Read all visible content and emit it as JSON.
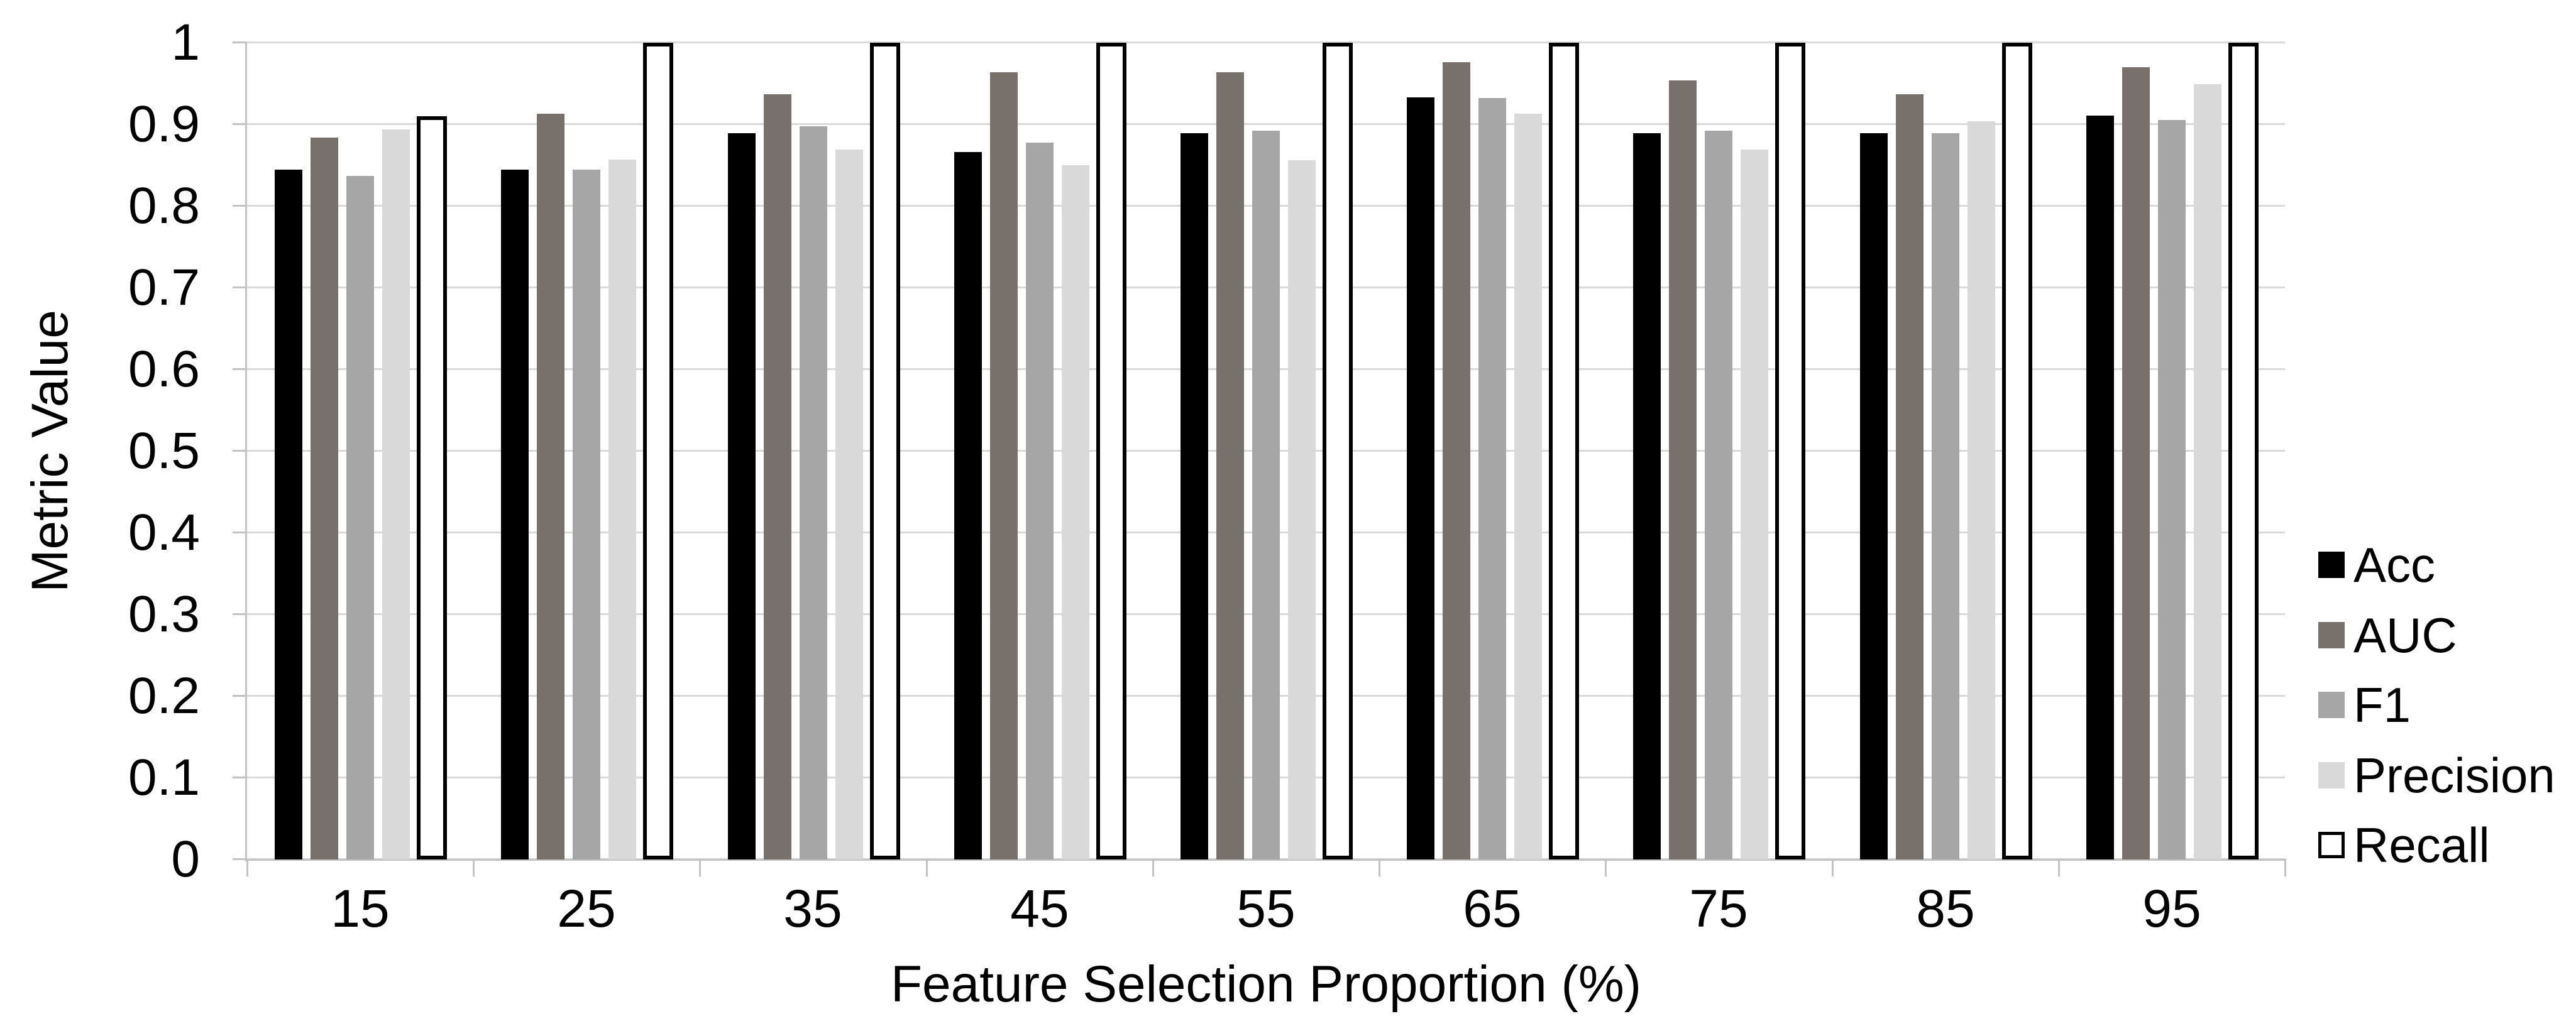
{
  "chart_data": {
    "type": "bar",
    "title": "",
    "xlabel": "Feature Selection Proportion (%)",
    "ylabel": "Metric Value",
    "ylim": [
      0,
      1
    ],
    "grid": "horizontal",
    "legend_position": "right",
    "colors": {
      "gridline": "#dadada",
      "axis": "#c3c3c3"
    },
    "yticks": [
      {
        "label": "1",
        "value": 1.0
      },
      {
        "label": "0.9",
        "value": 0.9
      },
      {
        "label": "0.8",
        "value": 0.8
      },
      {
        "label": "0.7",
        "value": 0.7
      },
      {
        "label": "0.6",
        "value": 0.6
      },
      {
        "label": "0.5",
        "value": 0.5
      },
      {
        "label": "0.4",
        "value": 0.4
      },
      {
        "label": "0.3",
        "value": 0.3
      },
      {
        "label": "0.2",
        "value": 0.2
      },
      {
        "label": "0.1",
        "value": 0.1
      },
      {
        "label": "0",
        "value": 0.0
      }
    ],
    "categories": [
      "15",
      "25",
      "35",
      "45",
      "55",
      "65",
      "75",
      "85",
      "95"
    ],
    "series": [
      {
        "name": "Acc",
        "color": "#000000",
        "values": [
          0.845,
          0.845,
          0.889,
          0.866,
          0.889,
          0.933,
          0.889,
          0.889,
          0.911
        ]
      },
      {
        "name": "AUC",
        "color": "#78706a",
        "values": [
          0.884,
          0.913,
          0.937,
          0.964,
          0.964,
          0.976,
          0.954,
          0.937,
          0.97
        ]
      },
      {
        "name": "F1",
        "color": "#a6a6a6",
        "values": [
          0.837,
          0.845,
          0.898,
          0.878,
          0.892,
          0.932,
          0.892,
          0.889,
          0.905
        ]
      },
      {
        "name": "Precision",
        "color": "#d9d9d9",
        "values": [
          0.894,
          0.857,
          0.869,
          0.85,
          0.856,
          0.913,
          0.869,
          0.904,
          0.949
        ]
      },
      {
        "name": "Recall",
        "color": "#ffffff",
        "outline": "#000000",
        "values": [
          0.91,
          1.0,
          1.0,
          1.0,
          1.0,
          1.0,
          1.0,
          1.0,
          1.0
        ]
      }
    ]
  }
}
